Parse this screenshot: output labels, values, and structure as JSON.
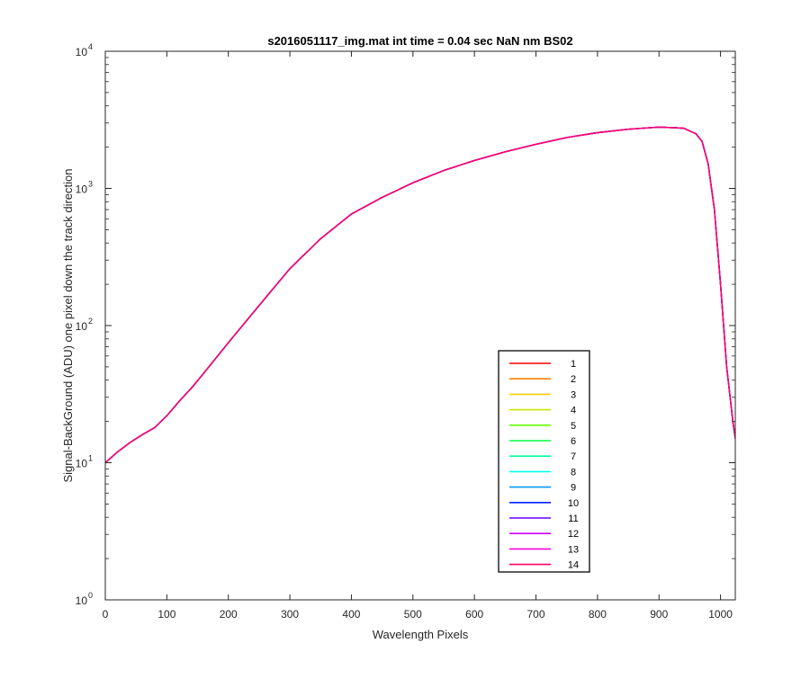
{
  "chart_data": {
    "type": "line",
    "title": "s2016051117_img.mat int time = 0.04 sec  NaN nm BS02",
    "xlabel": "Wavelength Pixels",
    "ylabel": "Signal-BackGround (ADU) one pixel down the track direction",
    "xlim": [
      0,
      1024
    ],
    "ylim": [
      1,
      10000
    ],
    "y_scale": "log",
    "xticks": [
      0,
      100,
      200,
      300,
      400,
      500,
      600,
      700,
      800,
      900,
      1000
    ],
    "yticks": [
      {
        "value": 1,
        "base": "10",
        "exp": "0"
      },
      {
        "value": 10,
        "base": "10",
        "exp": "1"
      },
      {
        "value": 100,
        "base": "10",
        "exp": "2"
      },
      {
        "value": 1000,
        "base": "10",
        "exp": "3"
      },
      {
        "value": 10000,
        "base": "10",
        "exp": "4"
      }
    ],
    "grid": false,
    "legend_position": "lower-right",
    "x": [
      0,
      20,
      40,
      60,
      80,
      100,
      120,
      140,
      160,
      180,
      200,
      250,
      300,
      350,
      400,
      450,
      500,
      550,
      600,
      650,
      700,
      750,
      800,
      850,
      900,
      940,
      960,
      970,
      980,
      990,
      1000,
      1010,
      1020,
      1024
    ],
    "series": [
      {
        "name": "1",
        "color": "#ff0000",
        "values": [
          10,
          12,
          14,
          16,
          18,
          22,
          28,
          35,
          45,
          58,
          75,
          140,
          260,
          430,
          650,
          860,
          1100,
          1350,
          1600,
          1850,
          2100,
          2350,
          2550,
          2700,
          2800,
          2750,
          2500,
          2200,
          1500,
          700,
          200,
          50,
          20,
          15
        ]
      },
      {
        "name": "2",
        "color": "#ff8000",
        "values": [
          10,
          12,
          14,
          16,
          18,
          22,
          28,
          35,
          45,
          58,
          75,
          140,
          260,
          430,
          650,
          860,
          1100,
          1350,
          1600,
          1850,
          2100,
          2350,
          2550,
          2700,
          2800,
          2750,
          2500,
          2200,
          1500,
          700,
          200,
          50,
          20,
          15
        ]
      },
      {
        "name": "3",
        "color": "#ffcc00",
        "values": [
          10,
          12,
          14,
          16,
          18,
          22,
          28,
          35,
          45,
          58,
          75,
          140,
          260,
          430,
          650,
          860,
          1100,
          1350,
          1600,
          1850,
          2100,
          2350,
          2550,
          2700,
          2800,
          2750,
          2500,
          2200,
          1500,
          700,
          200,
          50,
          20,
          15
        ]
      },
      {
        "name": "4",
        "color": "#c8e600",
        "values": [
          10,
          12,
          14,
          16,
          18,
          22,
          28,
          35,
          45,
          58,
          75,
          140,
          260,
          430,
          650,
          860,
          1100,
          1350,
          1600,
          1850,
          2100,
          2350,
          2550,
          2700,
          2800,
          2750,
          2500,
          2200,
          1500,
          700,
          200,
          50,
          20,
          15
        ]
      },
      {
        "name": "5",
        "color": "#66ff00",
        "values": [
          10,
          12,
          14,
          16,
          18,
          22,
          28,
          35,
          45,
          58,
          75,
          140,
          260,
          430,
          650,
          860,
          1100,
          1350,
          1600,
          1850,
          2100,
          2350,
          2550,
          2700,
          2800,
          2750,
          2500,
          2200,
          1500,
          700,
          200,
          50,
          20,
          15
        ]
      },
      {
        "name": "6",
        "color": "#00ff40",
        "values": [
          10,
          12,
          14,
          16,
          18,
          22,
          28,
          35,
          45,
          58,
          75,
          140,
          260,
          430,
          650,
          860,
          1100,
          1350,
          1600,
          1850,
          2100,
          2350,
          2550,
          2700,
          2800,
          2750,
          2500,
          2200,
          1500,
          700,
          200,
          50,
          20,
          15
        ]
      },
      {
        "name": "7",
        "color": "#00ff99",
        "values": [
          10,
          12,
          14,
          16,
          18,
          22,
          28,
          35,
          45,
          58,
          75,
          140,
          260,
          430,
          650,
          860,
          1100,
          1350,
          1600,
          1850,
          2100,
          2350,
          2550,
          2700,
          2800,
          2750,
          2500,
          2200,
          1500,
          700,
          200,
          50,
          20,
          15
        ]
      },
      {
        "name": "8",
        "color": "#00ffee",
        "values": [
          10,
          12,
          14,
          16,
          18,
          22,
          28,
          35,
          45,
          58,
          75,
          140,
          260,
          430,
          650,
          860,
          1100,
          1350,
          1600,
          1850,
          2100,
          2350,
          2550,
          2700,
          2800,
          2750,
          2500,
          2200,
          1500,
          700,
          200,
          50,
          20,
          15
        ]
      },
      {
        "name": "9",
        "color": "#0099ff",
        "values": [
          10,
          12,
          14,
          16,
          18,
          22,
          28,
          35,
          45,
          58,
          75,
          140,
          260,
          430,
          650,
          860,
          1100,
          1350,
          1600,
          1850,
          2100,
          2350,
          2550,
          2700,
          2800,
          2750,
          2500,
          2200,
          1500,
          700,
          200,
          50,
          20,
          15
        ]
      },
      {
        "name": "10",
        "color": "#0022ff",
        "values": [
          10,
          12,
          14,
          16,
          18,
          22,
          28,
          35,
          45,
          58,
          75,
          140,
          260,
          430,
          650,
          860,
          1100,
          1350,
          1600,
          1850,
          2100,
          2350,
          2550,
          2700,
          2800,
          2750,
          2500,
          2200,
          1500,
          700,
          200,
          50,
          20,
          15
        ]
      },
      {
        "name": "11",
        "color": "#6600ff",
        "values": [
          10,
          12,
          14,
          16,
          18,
          22,
          28,
          35,
          45,
          58,
          75,
          140,
          260,
          430,
          650,
          860,
          1100,
          1350,
          1600,
          1850,
          2100,
          2350,
          2550,
          2700,
          2800,
          2750,
          2500,
          2200,
          1500,
          700,
          200,
          50,
          20,
          15
        ]
      },
      {
        "name": "12",
        "color": "#cc00ff",
        "values": [
          10,
          12,
          14,
          16,
          18,
          22,
          28,
          35,
          45,
          58,
          75,
          140,
          260,
          430,
          650,
          860,
          1100,
          1350,
          1600,
          1850,
          2100,
          2350,
          2550,
          2700,
          2800,
          2750,
          2500,
          2200,
          1500,
          700,
          200,
          50,
          20,
          15
        ]
      },
      {
        "name": "13",
        "color": "#ff00dd",
        "values": [
          10,
          12,
          14,
          16,
          18,
          22,
          28,
          35,
          45,
          58,
          75,
          140,
          260,
          430,
          650,
          860,
          1100,
          1350,
          1600,
          1850,
          2100,
          2350,
          2550,
          2700,
          2800,
          2750,
          2500,
          2200,
          1500,
          700,
          200,
          50,
          20,
          15
        ]
      },
      {
        "name": "14",
        "color": "#ff0066",
        "values": [
          10,
          12,
          14,
          16,
          18,
          22,
          28,
          35,
          45,
          58,
          75,
          140,
          260,
          430,
          650,
          860,
          1100,
          1350,
          1600,
          1850,
          2100,
          2350,
          2550,
          2700,
          2800,
          2750,
          2500,
          2200,
          1500,
          700,
          200,
          50,
          20,
          15
        ]
      }
    ]
  }
}
